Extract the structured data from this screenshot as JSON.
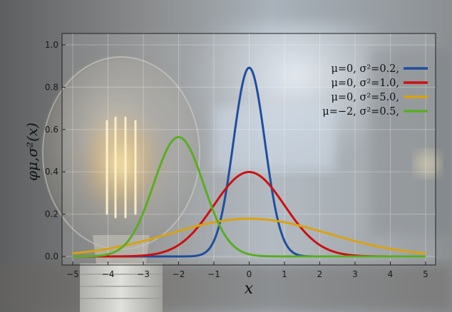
{
  "chart_data": {
    "type": "line",
    "xlabel": "x",
    "ylabel": "φμ,σ²(x)",
    "xlim": [
      -5,
      5
    ],
    "ylim": [
      0,
      1.0
    ],
    "x_ticks": [
      "−5",
      "−4",
      "−3",
      "−2",
      "−1",
      "0",
      "1",
      "2",
      "3",
      "4",
      "5"
    ],
    "y_ticks": [
      "0.0",
      "0.2",
      "0.4",
      "0.6",
      "0.8",
      "1.0"
    ],
    "grid": true,
    "legend_position": "top-right",
    "series": [
      {
        "name": "μ=0,   σ²=0.2,",
        "mu": 0,
        "variance": 0.2,
        "color": "#1f4e9e"
      },
      {
        "name": "μ=0,   σ²=1.0,",
        "mu": 0,
        "variance": 1.0,
        "color": "#cc1010"
      },
      {
        "name": "μ=0,   σ²=5.0,",
        "mu": 0,
        "variance": 5.0,
        "color": "#d9a214"
      },
      {
        "name": "μ=−2, σ²=0.5,",
        "mu": -2,
        "variance": 0.5,
        "color": "#5aad22"
      }
    ]
  }
}
